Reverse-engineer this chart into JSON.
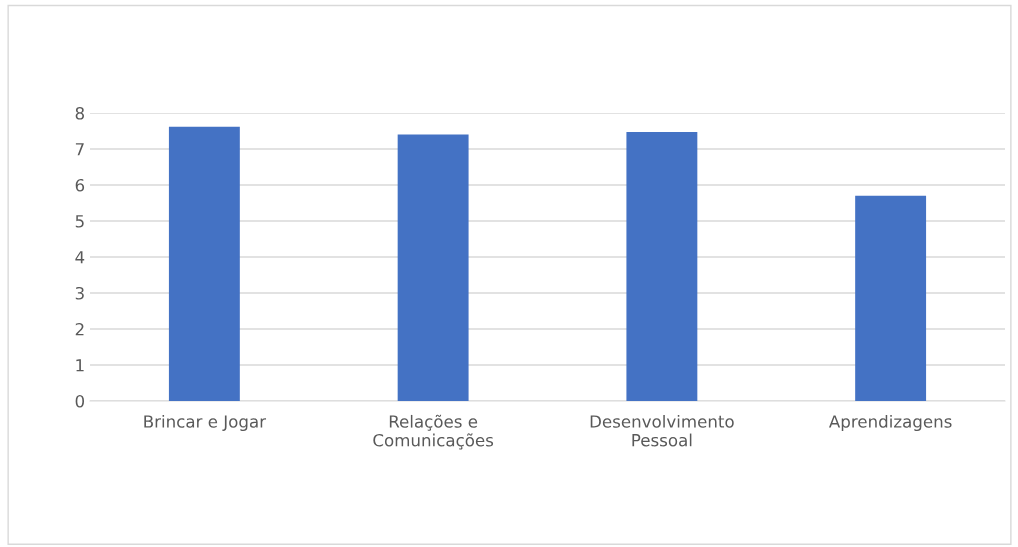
{
  "chart_data": {
    "type": "bar",
    "categories": [
      "Brincar e Jogar",
      "Relações e\nComunicações",
      "Desenvolvimento\nPessoal",
      "Aprendizagens"
    ],
    "values": [
      7.62,
      7.4,
      7.47,
      5.7
    ],
    "color": "#4472c4",
    "ylim": [
      0,
      8
    ],
    "yticks": [
      0,
      1,
      2,
      3,
      4,
      5,
      6,
      7,
      8
    ],
    "grid": "y"
  }
}
